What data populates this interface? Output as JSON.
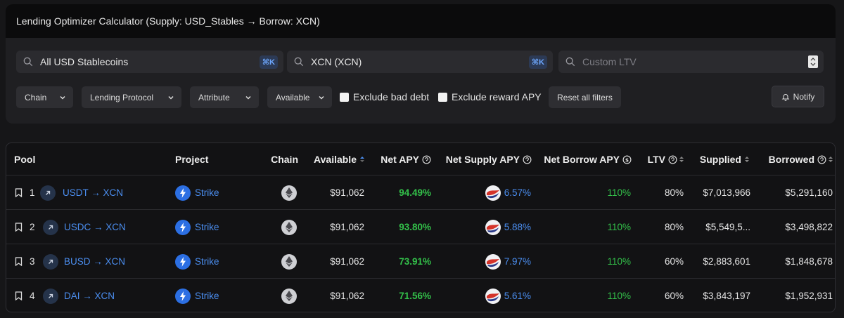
{
  "header": {
    "title": "Lending Optimizer Calculator (Supply: USD_Stables → Borrow: XCN)"
  },
  "search": {
    "supply": {
      "value": "All USD Stablecoins",
      "shortcut": "⌘K"
    },
    "borrow": {
      "value": "XCN (XCN)",
      "shortcut": "⌘K"
    },
    "ltv": {
      "placeholder": "Custom LTV"
    }
  },
  "filters": {
    "chain": "Chain",
    "protocol": "Lending Protocol",
    "attribute": "Attribute",
    "available": "Available",
    "exclude_bad_debt": "Exclude bad debt",
    "exclude_reward_apy": "Exclude reward APY",
    "reset": "Reset all filters",
    "notify": "Notify"
  },
  "table": {
    "headers": {
      "pool": "Pool",
      "project": "Project",
      "chain": "Chain",
      "available": "Available",
      "net_apy": "Net APY",
      "net_supply_apy": "Net Supply APY",
      "net_borrow_apy": "Net Borrow APY",
      "ltv": "LTV",
      "supplied": "Supplied",
      "borrowed": "Borrowed"
    },
    "rows": [
      {
        "rank": "1",
        "pool": "USDT → XCN",
        "project": "Strike",
        "available": "$91,062",
        "net_apy": "94.49%",
        "net_supply_apy": "6.57%",
        "net_borrow_apy": "110%",
        "ltv": "80%",
        "supplied": "$7,013,966",
        "borrowed": "$5,291,160"
      },
      {
        "rank": "2",
        "pool": "USDC → XCN",
        "project": "Strike",
        "available": "$91,062",
        "net_apy": "93.80%",
        "net_supply_apy": "5.88%",
        "net_borrow_apy": "110%",
        "ltv": "80%",
        "supplied": "$5,549,5...",
        "borrowed": "$3,498,822"
      },
      {
        "rank": "3",
        "pool": "BUSD → XCN",
        "project": "Strike",
        "available": "$91,062",
        "net_apy": "73.91%",
        "net_supply_apy": "7.97%",
        "net_borrow_apy": "110%",
        "ltv": "60%",
        "supplied": "$2,883,601",
        "borrowed": "$1,848,678"
      },
      {
        "rank": "4",
        "pool": "DAI → XCN",
        "project": "Strike",
        "available": "$91,062",
        "net_apy": "71.56%",
        "net_supply_apy": "5.61%",
        "net_borrow_apy": "110%",
        "ltv": "60%",
        "supplied": "$3,843,197",
        "borrowed": "$1,952,931"
      }
    ]
  },
  "colors": {
    "accent": "#4b8ef0",
    "positive": "#33c14a",
    "background": "#161618"
  }
}
